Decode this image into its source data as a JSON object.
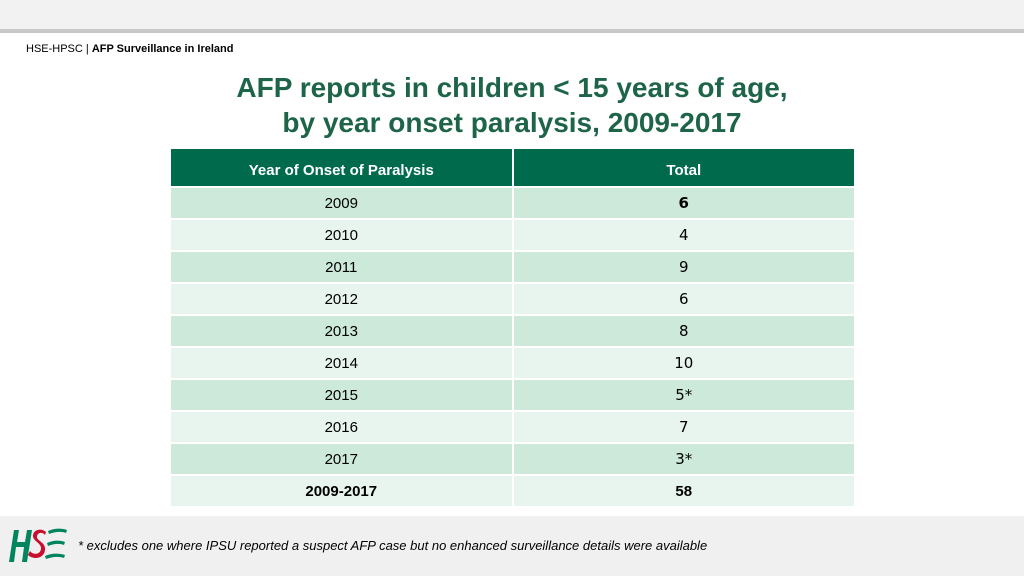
{
  "header": {
    "org": "HSE-HPSC",
    "separator": " | ",
    "section": "AFP Surveillance in Ireland"
  },
  "title": {
    "line1": "AFP reports in children < 15 years of age,",
    "line2": "by year onset paralysis, 2009-2017"
  },
  "table": {
    "columns": [
      "Year of Onset of Paralysis",
      "Total"
    ],
    "rows": [
      {
        "year": "2009",
        "total": "6"
      },
      {
        "year": "2010",
        "total": "4"
      },
      {
        "year": "2011",
        "total": "9"
      },
      {
        "year": "2012",
        "total": "6"
      },
      {
        "year": "2013",
        "total": "8"
      },
      {
        "year": "2014",
        "total": "10"
      },
      {
        "year": "2015",
        "total": "5*"
      },
      {
        "year": "2016",
        "total": "7"
      },
      {
        "year": "2017",
        "total": "3*"
      }
    ],
    "summary": {
      "year": "2009-2017",
      "total": "58"
    }
  },
  "footnote": "* excludes one where IPSU reported a suspect AFP case but no enhanced surveillance details were available",
  "colors": {
    "brand_green": "#006a4d",
    "title_green": "#1e6448",
    "logo_green": "#00855f",
    "logo_red": "#c8102e"
  },
  "logo_icon": "hse-logo-icon"
}
